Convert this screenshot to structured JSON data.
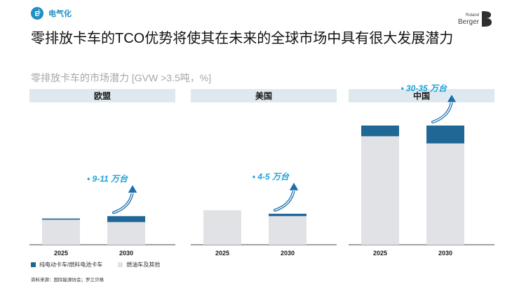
{
  "header": {
    "tag_text": "电气化",
    "logo_small": "Roland",
    "logo_big": "Berger",
    "title": "零排放卡车的TCO优势将使其在未来的全球市场中具有很大发展潜力",
    "subtitle": "零排放卡车的市场潜力 [GVW >3.5吨，%]"
  },
  "colors": {
    "zero_emission": "#1f6896",
    "fuel": "#e1e2e5",
    "panel_header": "#dde8ef",
    "accent": "#1fa3d6"
  },
  "chart_data": {
    "type": "bar",
    "stacked": true,
    "ylim": [
      0,
      100
    ],
    "series": [
      {
        "key": "zero_emission",
        "name": "纯电动卡车/燃料电池卡车"
      },
      {
        "key": "fuel",
        "name": "燃油车及其他"
      }
    ],
    "panels": [
      {
        "name": "欧盟",
        "annotation": "• 9-11 万台",
        "categories": [
          "2025",
          "2030"
        ],
        "values": {
          "zero_emission": [
            1,
            5
          ],
          "fuel": [
            21,
            19
          ]
        }
      },
      {
        "name": "美国",
        "annotation": "• 4-5 万台",
        "categories": [
          "2025",
          "2030"
        ],
        "values": {
          "zero_emission": [
            0,
            2
          ],
          "fuel": [
            29,
            24
          ]
        }
      },
      {
        "name": "中国",
        "annotation": "• 30-35 万台",
        "categories": [
          "2025",
          "2030"
        ],
        "values": {
          "zero_emission": [
            9,
            15
          ],
          "fuel": [
            91,
            85
          ]
        }
      }
    ]
  },
  "legend": {
    "zero_emission_label": "纯电动卡车/燃料电池卡车",
    "fuel_label": "燃油车及其他"
  },
  "source": "资料来源：国际能源协会；罗兰贝格"
}
